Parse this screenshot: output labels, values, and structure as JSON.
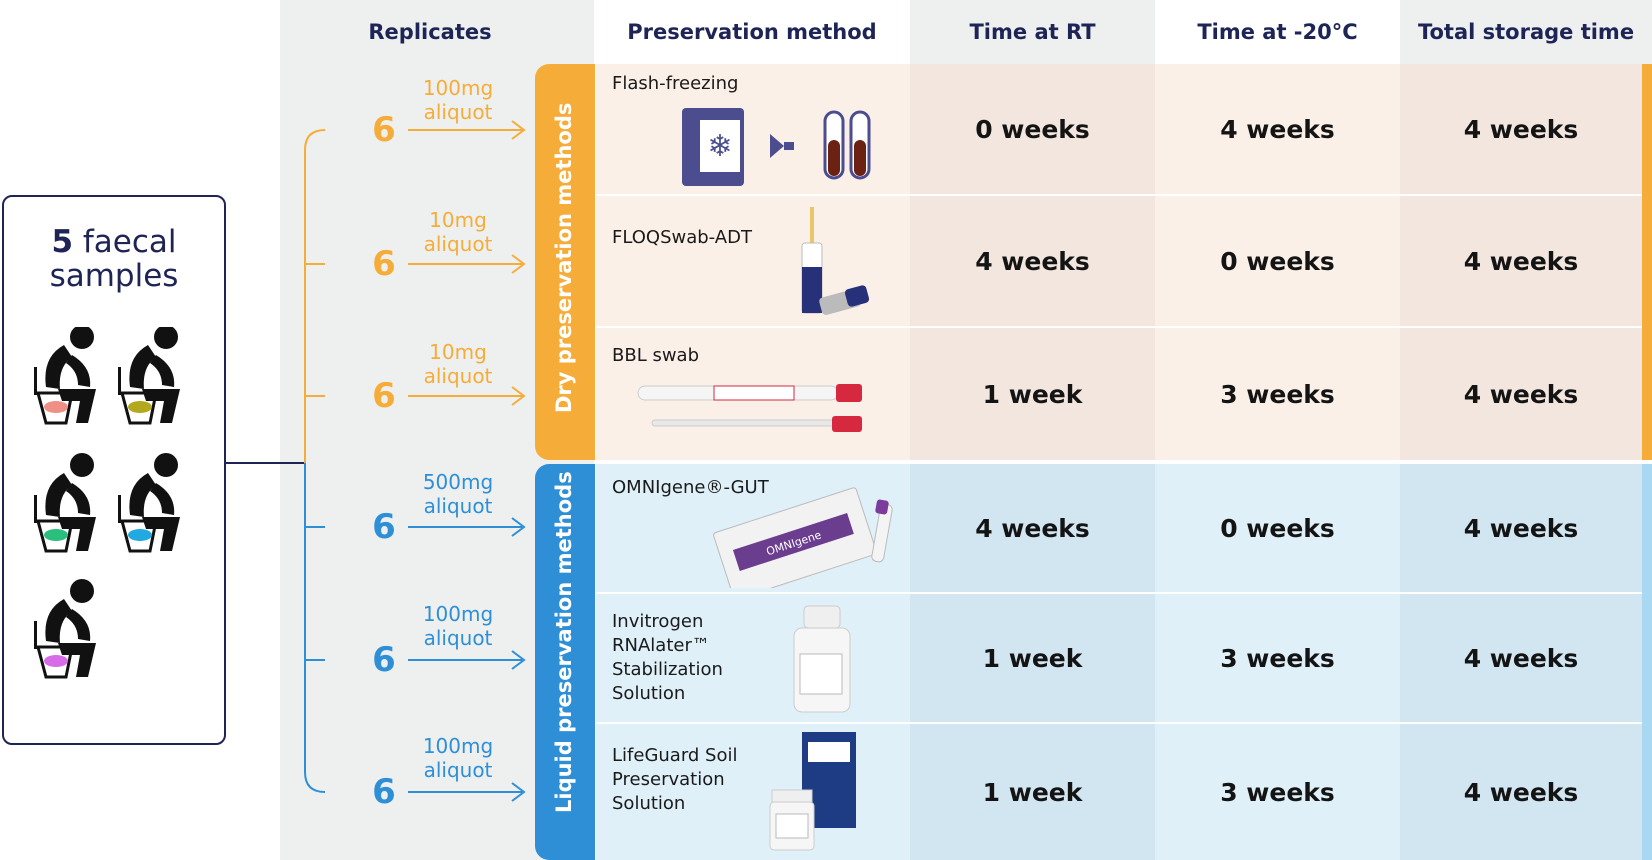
{
  "samples": {
    "count": "5",
    "label": "faecal samples",
    "label_line1": "faecal",
    "label_line2": "samples"
  },
  "headers": {
    "replicates": "Replicates",
    "method": "Preservation method",
    "time_rt": "Time at RT",
    "time_minus20": "Time at -20°C",
    "total": "Total storage time"
  },
  "groups": [
    {
      "label": "Dry preservation methods",
      "color": "#f6ac38"
    },
    {
      "label": "Liquid preservation methods",
      "color": "#2e8fd6"
    }
  ],
  "rows": [
    {
      "replicates": "6",
      "amount": "100mg",
      "unit": "aliquot",
      "method": "Flash-freezing",
      "rt": "0 weeks",
      "minus20": "4 weeks",
      "total": "4 weeks"
    },
    {
      "replicates": "6",
      "amount": "10mg",
      "unit": "aliquot",
      "method": "FLOQSwab-ADT",
      "rt": "4 weeks",
      "minus20": "0 weeks",
      "total": "4 weeks"
    },
    {
      "replicates": "6",
      "amount": "10mg",
      "unit": "aliquot",
      "method": "BBL swab",
      "rt": "1 week",
      "minus20": "3 weeks",
      "total": "4 weeks"
    },
    {
      "replicates": "6",
      "amount": "500mg",
      "unit": "aliquot",
      "method": "OMNIgene®-GUT",
      "rt": "4 weeks",
      "minus20": "0 weeks",
      "total": "4 weeks"
    },
    {
      "replicates": "6",
      "amount": "100mg",
      "unit": "aliquot",
      "method": "Invitrogen\nRNAlater™\nStabilization\nSolution",
      "rt": "1 week",
      "minus20": "3 weeks",
      "total": "4 weeks"
    },
    {
      "replicates": "6",
      "amount": "100mg",
      "unit": "aliquot",
      "method": "LifeGuard Soil\nPreservation\nSolution",
      "rt": "1 week",
      "minus20": "3 weeks",
      "total": "4 weeks"
    }
  ],
  "colors": {
    "navy": "#1e2456",
    "orange": "#f6ac38",
    "blue": "#2e8fd6",
    "dry_bg": "#fbf0e8",
    "dry_bg_dark": "#f2e6de",
    "liquid_bg": "#dff0f9",
    "liquid_bg_dark": "#d2e6f2",
    "grey_bg": "#eef0f0"
  }
}
